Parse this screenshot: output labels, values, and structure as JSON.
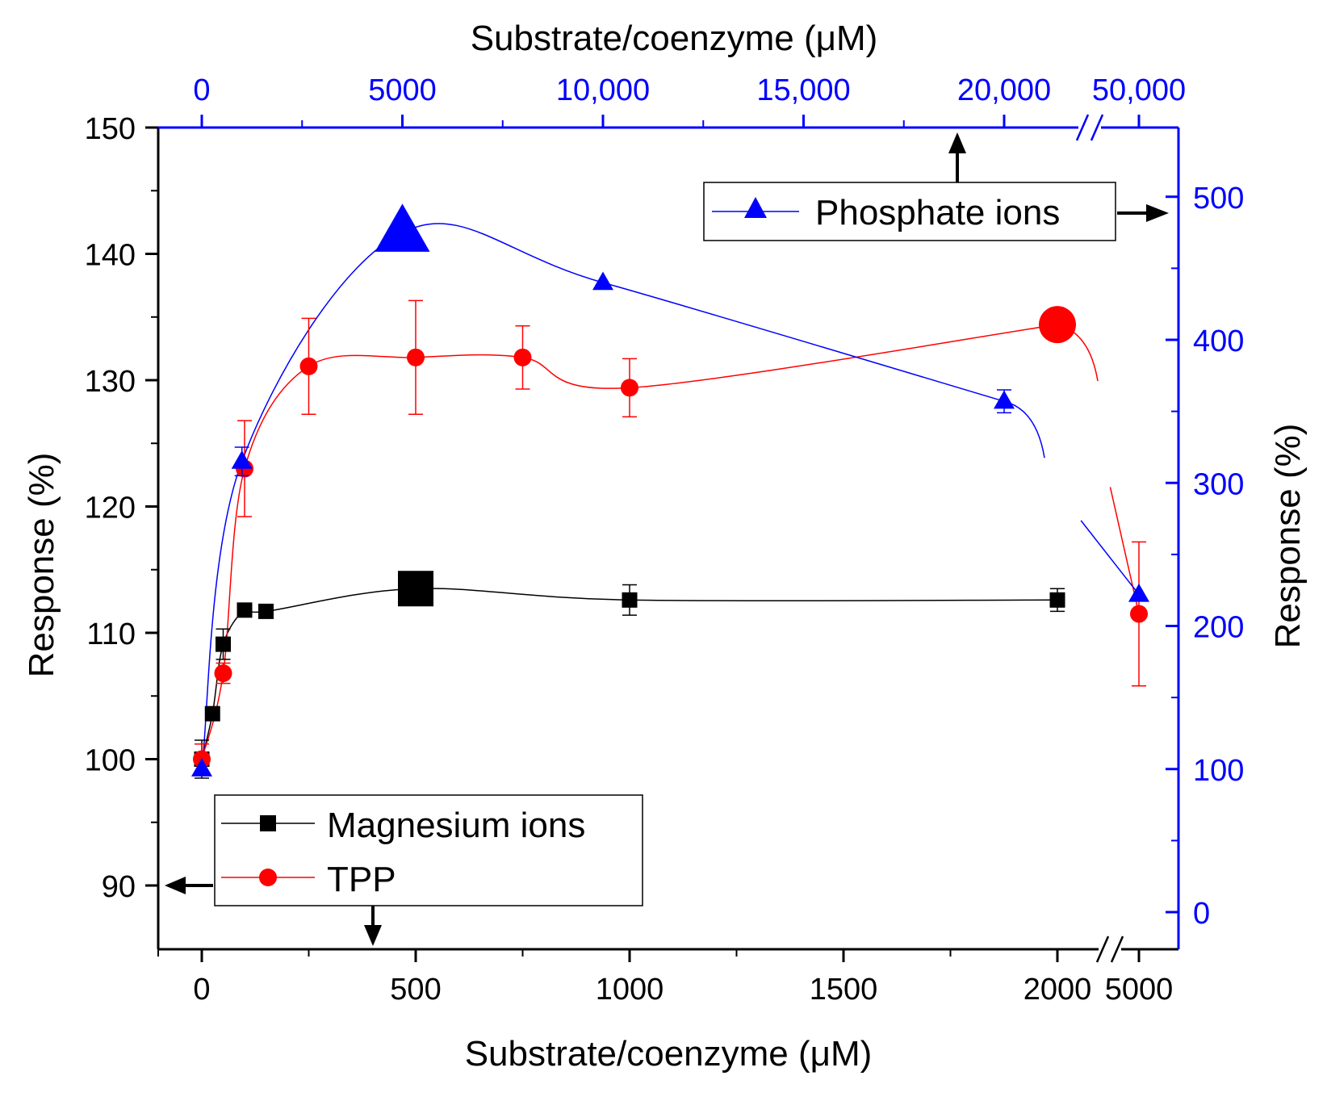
{
  "chart_data": {
    "type": "scatter",
    "title": "",
    "bottom_axis": {
      "label": "Substrate/coenzyme (μM)",
      "ticks": [
        0,
        500,
        1000,
        1500,
        2000,
        5000
      ],
      "tick_labels": [
        "0",
        "500",
        "1000",
        "1500",
        "2000",
        "5000"
      ],
      "broken_at": [
        2000,
        5000
      ],
      "range": [
        -100,
        5000
      ]
    },
    "top_axis": {
      "label": "Substrate/coenzyme (μM)",
      "ticks": [
        0,
        5000,
        10000,
        15000,
        20000,
        50000
      ],
      "tick_labels": [
        "0",
        "5000",
        "10,000",
        "15,000",
        "20,000",
        "50,000"
      ],
      "broken_at": [
        20000,
        50000
      ],
      "range": [
        0,
        50000
      ]
    },
    "left_axis": {
      "label": "Response (%)",
      "ticks": [
        90,
        100,
        110,
        120,
        130,
        140,
        150
      ],
      "tick_labels": [
        "90",
        "100",
        "110",
        "120",
        "130",
        "140",
        "150"
      ],
      "range": [
        85,
        150
      ]
    },
    "right_axis": {
      "label": "Response (%)",
      "ticks": [
        0,
        100,
        200,
        300,
        400,
        500
      ],
      "tick_labels": [
        "0",
        "100",
        "200",
        "300",
        "400",
        "500"
      ],
      "range": [
        -27,
        550
      ]
    },
    "series": [
      {
        "name": "Magnesium ions",
        "axes": "bottom-left",
        "color": "#000000",
        "marker": "square",
        "x": [
          0,
          25,
          50,
          100,
          150,
          500,
          1000,
          2000
        ],
        "y": [
          100,
          103.6,
          109.1,
          111.8,
          111.7,
          113.5,
          112.6,
          112.6
        ],
        "err": [
          1.5,
          0,
          1.2,
          0,
          0,
          0,
          1.2,
          0.9
        ],
        "highlight_index": 5
      },
      {
        "name": "TPP",
        "axes": "bottom-left",
        "color": "#ff0000",
        "marker": "circle",
        "x": [
          0,
          50,
          100,
          250,
          500,
          750,
          1000,
          2000,
          5000
        ],
        "y": [
          100,
          106.8,
          123,
          131.1,
          131.8,
          131.8,
          129.4,
          134.4,
          111.5
        ],
        "err": [
          1.2,
          0.8,
          3.8,
          3.8,
          4.5,
          2.5,
          2.3,
          0,
          5.7
        ],
        "highlight_index": 7
      },
      {
        "name": "Phosphate ions",
        "axes": "top-right",
        "color": "#0000ff",
        "marker": "triangle",
        "x": [
          0,
          1000,
          5000,
          10000,
          20000,
          50000
        ],
        "y": [
          100,
          315,
          475,
          440,
          357,
          222
        ],
        "err": [
          0,
          10,
          0,
          0,
          8,
          0
        ],
        "highlight_index": 2
      }
    ],
    "legends": [
      {
        "entries": [
          "Magnesium ions",
          "TPP"
        ],
        "position": "bottom-left"
      },
      {
        "entries": [
          "Phosphate ions"
        ],
        "position": "top-right"
      }
    ]
  }
}
